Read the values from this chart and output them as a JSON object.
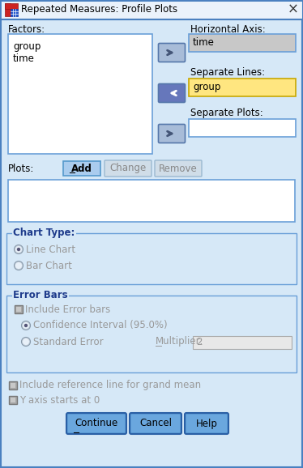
{
  "title": "Repeated Measures: Profile Plots",
  "bg_color": "#d6e8f7",
  "dialog_bg": "#d6e8f7",
  "factors_label": "Factors:",
  "factors_items": [
    "group",
    "time"
  ],
  "factors_box_bg": "#ffffff",
  "horiz_axis_label": "Horizontal Axis:",
  "horiz_axis_value": "time",
  "horiz_axis_bg": "#c8c8c8",
  "sep_lines_label": "Separate Lines:",
  "sep_lines_value": "group",
  "sep_lines_bg": "#ffe680",
  "sep_plots_label": "Separate Plots:",
  "sep_plots_value": "",
  "sep_plots_bg": "#ffffff",
  "plots_label": "Plots:",
  "plots_box_bg": "#ffffff",
  "btn_add": "Add",
  "btn_change": "Change",
  "btn_remove": "Remove",
  "chart_type_label": "Chart Type:",
  "radio_line": "Line Chart",
  "radio_bar": "Bar Chart",
  "error_bars_label": "Error Bars",
  "cb_include_error": "Include Error bars",
  "radio_confidence": "Confidence Interval (95.0%)",
  "radio_std_error": "Standard Error",
  "multiplier_label": "Multiplier:",
  "multiplier_value": "2",
  "cb_ref_line": "Include reference line for grand mean",
  "cb_y_axis": "Y axis starts at 0",
  "btn_continue": "Continue",
  "btn_cancel": "Cancel",
  "btn_help": "Help",
  "section_label_color": "#1f3c8c",
  "text_color": "#000000",
  "disabled_text_color": "#999999",
  "border_color": "#6a9fd8",
  "title_bg": "#eaf2fb",
  "outer_border": "#4a80c0"
}
